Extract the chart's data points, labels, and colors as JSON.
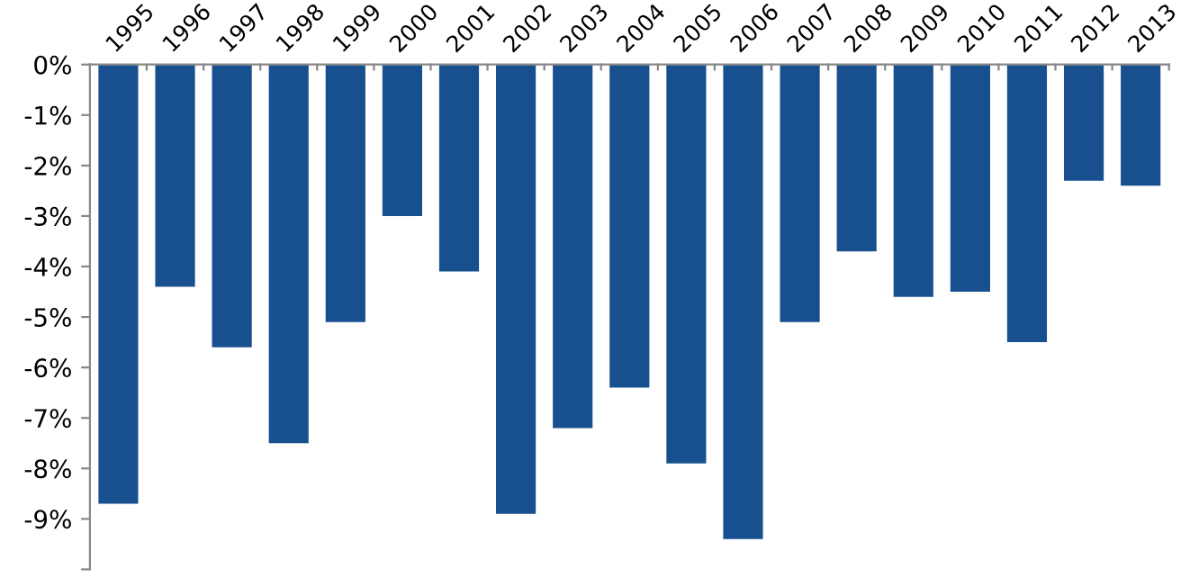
{
  "chart_data": {
    "type": "bar",
    "categories": [
      "1995",
      "1996",
      "1997",
      "1998",
      "1999",
      "2000",
      "2001",
      "2002",
      "2003",
      "2004",
      "2005",
      "2006",
      "2007",
      "2008",
      "2009",
      "2010",
      "2011",
      "2012",
      "2013"
    ],
    "values": [
      -8.7,
      -4.4,
      -5.6,
      -7.5,
      -5.1,
      -3.0,
      -4.1,
      -8.9,
      -7.2,
      -6.4,
      -7.9,
      -9.4,
      -5.1,
      -3.7,
      -4.6,
      -4.5,
      -5.5,
      -2.3,
      -2.4
    ],
    "color": "#174f8f",
    "ylim": [
      -10,
      0
    ],
    "yticks": [
      {
        "value": 0,
        "label": "0%"
      },
      {
        "value": -1,
        "label": "-1%"
      },
      {
        "value": -2,
        "label": "-2%"
      },
      {
        "value": -3,
        "label": "-3%"
      },
      {
        "value": -4,
        "label": "-4%"
      },
      {
        "value": -5,
        "label": "-5%"
      },
      {
        "value": -6,
        "label": "-6%"
      },
      {
        "value": -7,
        "label": "-7%"
      },
      {
        "value": -8,
        "label": "-8%"
      },
      {
        "value": -9,
        "label": "-9%"
      },
      {
        "value": -10,
        "label": null
      }
    ],
    "grid": false,
    "legend": false
  }
}
